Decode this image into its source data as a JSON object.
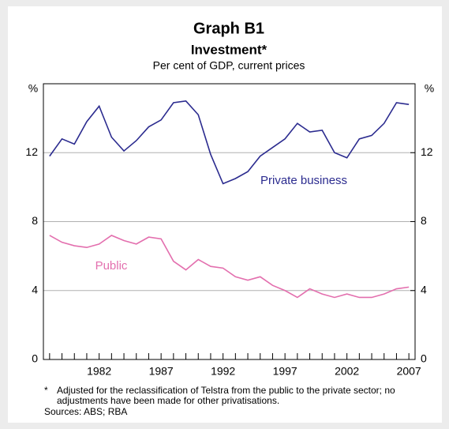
{
  "chart_data": {
    "type": "line",
    "title": "Graph B1",
    "subtitle": "Investment*",
    "unit_label": "Per cent of GDP, current prices",
    "y_label": "%",
    "y2_label": "%",
    "x": [
      1978,
      1979,
      1980,
      1981,
      1982,
      1983,
      1984,
      1985,
      1986,
      1987,
      1988,
      1989,
      1990,
      1991,
      1992,
      1993,
      1994,
      1995,
      1996,
      1997,
      1998,
      1999,
      2000,
      2001,
      2002,
      2003,
      2004,
      2005,
      2006,
      2007
    ],
    "series": [
      {
        "name": "Private business",
        "color": "#2b2b8f",
        "values": [
          11.8,
          12.8,
          12.5,
          13.8,
          14.7,
          12.9,
          12.1,
          12.7,
          13.5,
          13.9,
          14.9,
          15.0,
          14.2,
          11.9,
          10.2,
          10.5,
          10.9,
          11.8,
          12.3,
          12.8,
          13.7,
          13.2,
          13.3,
          12.0,
          11.7,
          12.8,
          13.0,
          13.7,
          14.9,
          14.8
        ]
      },
      {
        "name": "Public",
        "color": "#e36fae",
        "values": [
          7.2,
          6.8,
          6.6,
          6.5,
          6.7,
          7.2,
          6.9,
          6.7,
          7.1,
          7.0,
          5.7,
          5.2,
          5.8,
          5.4,
          5.3,
          4.8,
          4.6,
          4.8,
          4.3,
          4.0,
          3.6,
          4.1,
          3.8,
          3.6,
          3.8,
          3.6,
          3.6,
          3.8,
          4.1,
          4.2
        ]
      }
    ],
    "xlim": [
      1977.5,
      2007.5
    ],
    "xticks": [
      1982,
      1987,
      1992,
      1997,
      2002,
      2007
    ],
    "x_minor_ticks": [
      1978,
      1979,
      1980,
      1981,
      1983,
      1984,
      1985,
      1986,
      1988,
      1989,
      1990,
      1991,
      1993,
      1994,
      1995,
      1996,
      1998,
      1999,
      2000,
      2001,
      2003,
      2004,
      2005,
      2006
    ],
    "ylim": [
      0,
      16
    ],
    "yticks": [
      0,
      4,
      8,
      12
    ],
    "y2lim": [
      0,
      16
    ],
    "y2ticks": [
      0,
      4,
      8,
      12
    ],
    "grid": true,
    "footnote": "Adjusted for the reclassification of Telstra from the public to the private sector; no adjustments have been made for other privatisations.",
    "footnote_marker": "*",
    "sources": "Sources: ABS; RBA"
  }
}
